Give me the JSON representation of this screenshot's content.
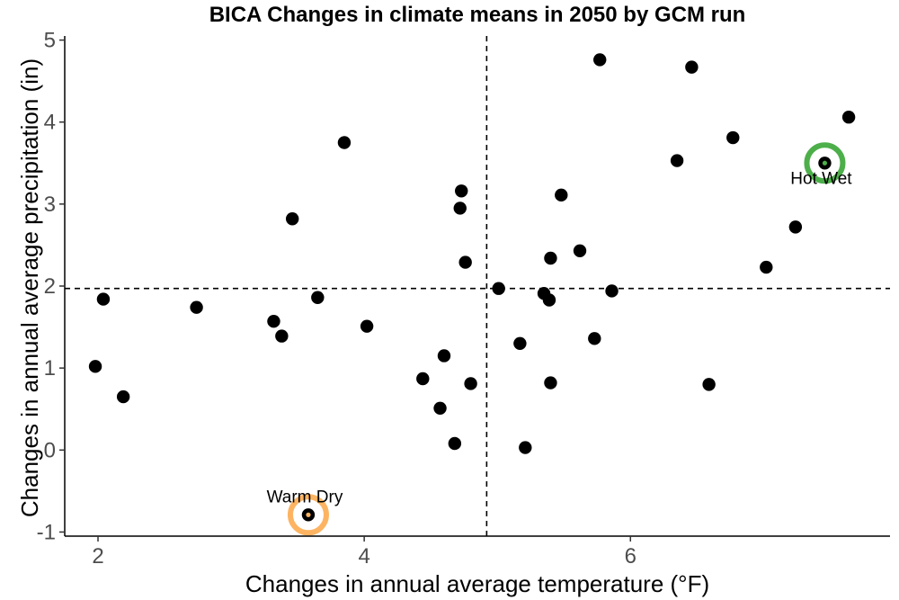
{
  "chart_data": {
    "type": "scatter",
    "title": "BICA Changes in climate means in 2050 by GCM run",
    "xlabel": "Changes in annual average temperature (°F)",
    "ylabel": "Changes in annual average precipitation (in)",
    "xlim": [
      1.75,
      7.95
    ],
    "ylim": [
      -1.05,
      5.05
    ],
    "x_ticks": [
      2,
      4,
      6
    ],
    "y_ticks": [
      -1,
      0,
      1,
      2,
      3,
      4,
      5
    ],
    "x_tick_labels": [
      "2",
      "4",
      "6"
    ],
    "y_tick_labels": [
      "-1",
      "0",
      "1",
      "2",
      "3",
      "4",
      "5"
    ],
    "grid": false,
    "reference_lines": {
      "x": 4.92,
      "y": 1.97
    },
    "points": [
      {
        "x": 1.98,
        "y": 1.02
      },
      {
        "x": 2.04,
        "y": 1.84
      },
      {
        "x": 2.19,
        "y": 0.65
      },
      {
        "x": 2.74,
        "y": 1.74
      },
      {
        "x": 3.32,
        "y": 1.57
      },
      {
        "x": 3.38,
        "y": 1.39
      },
      {
        "x": 3.46,
        "y": 2.82
      },
      {
        "x": 3.65,
        "y": 1.86
      },
      {
        "x": 3.85,
        "y": 3.75
      },
      {
        "x": 4.02,
        "y": 1.51
      },
      {
        "x": 4.44,
        "y": 0.87
      },
      {
        "x": 4.57,
        "y": 0.51
      },
      {
        "x": 4.6,
        "y": 1.15
      },
      {
        "x": 4.68,
        "y": 0.08
      },
      {
        "x": 4.72,
        "y": 2.95
      },
      {
        "x": 4.73,
        "y": 3.16
      },
      {
        "x": 4.76,
        "y": 2.29
      },
      {
        "x": 4.8,
        "y": 0.81
      },
      {
        "x": 5.01,
        "y": 1.97
      },
      {
        "x": 5.17,
        "y": 1.3
      },
      {
        "x": 5.21,
        "y": 0.03
      },
      {
        "x": 5.35,
        "y": 1.91
      },
      {
        "x": 5.39,
        "y": 1.83
      },
      {
        "x": 5.4,
        "y": 0.82
      },
      {
        "x": 5.4,
        "y": 2.34
      },
      {
        "x": 5.48,
        "y": 3.11
      },
      {
        "x": 5.62,
        "y": 2.43
      },
      {
        "x": 5.73,
        "y": 1.36
      },
      {
        "x": 5.77,
        "y": 4.76
      },
      {
        "x": 5.86,
        "y": 1.94
      },
      {
        "x": 6.35,
        "y": 3.53
      },
      {
        "x": 6.46,
        "y": 4.67
      },
      {
        "x": 6.59,
        "y": 0.8
      },
      {
        "x": 6.77,
        "y": 3.81
      },
      {
        "x": 7.02,
        "y": 2.23
      },
      {
        "x": 7.24,
        "y": 2.72
      },
      {
        "x": 7.64,
        "y": 4.06
      }
    ],
    "highlighted": [
      {
        "label": "Hot Wet",
        "x": 7.46,
        "y": 3.5,
        "ring_color": "#4daf4a",
        "center_color": "#4daf4a",
        "label_position": "below"
      },
      {
        "label": "Warm Dry",
        "x": 3.58,
        "y": -0.79,
        "ring_color": "#fdb462",
        "center_color": "#fdb462",
        "label_position": "above"
      }
    ],
    "colors": {
      "points": "#000000",
      "axis": "#000000",
      "tick_label": "#4d4d4d"
    }
  }
}
